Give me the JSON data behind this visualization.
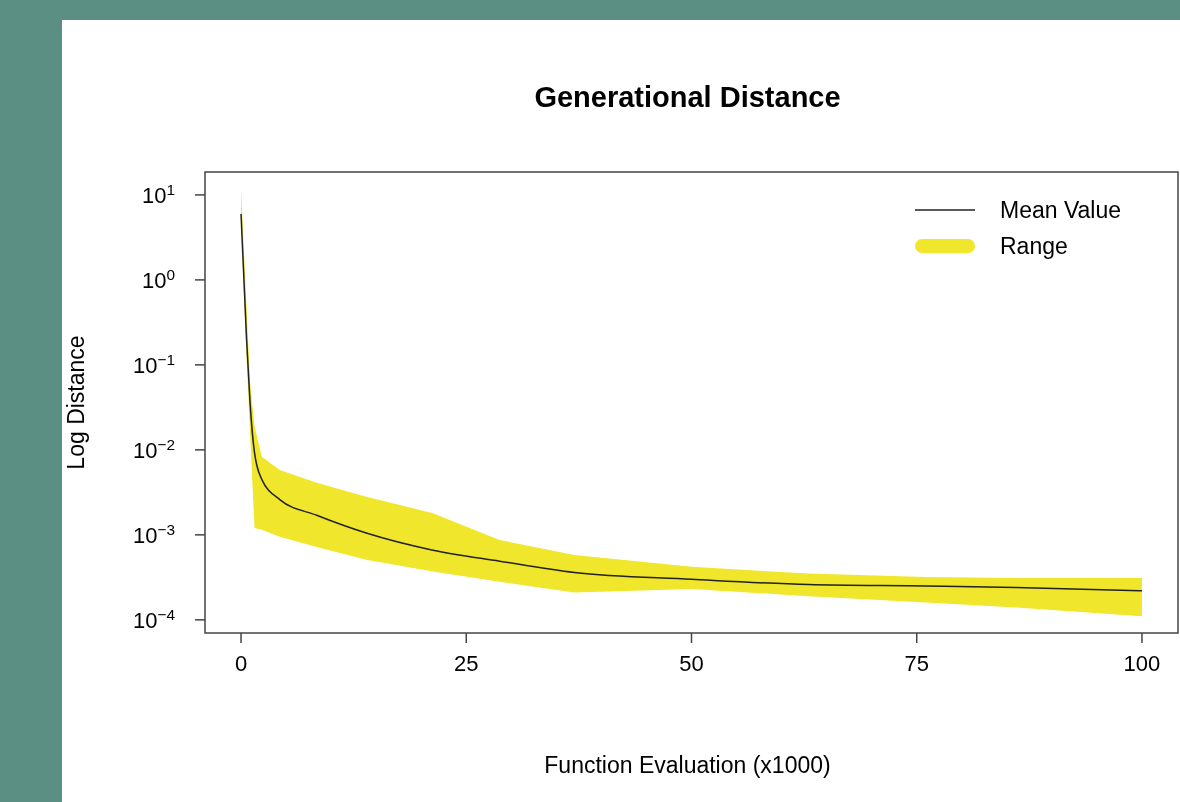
{
  "chart_data": {
    "type": "line",
    "title": "Generational Distance",
    "xlabel": "Function Evaluation (x1000)",
    "ylabel": "Log Distance",
    "log": "y",
    "x": [
      0,
      0.6,
      1.0,
      1.5,
      2.3,
      4.3,
      8.4,
      13.9,
      21.3,
      28.7,
      37,
      50,
      63,
      76,
      86,
      100
    ],
    "xlim": [
      -4,
      104
    ],
    "xticks": [
      0,
      25,
      50,
      75,
      100
    ],
    "ylim": [
      7e-05,
      18.6
    ],
    "yticks": [
      {
        "value": 10,
        "label": "10$^{1}$"
      },
      {
        "value": 1,
        "label": "10$^{0}$"
      },
      {
        "value": 0.1,
        "label": "10$^{−1}$"
      },
      {
        "value": 0.01,
        "label": "10$^{−2}$"
      },
      {
        "value": 0.001,
        "label": "10$^{−3}$"
      },
      {
        "value": 0.0001,
        "label": "10$^{−4}$"
      }
    ],
    "series": [
      {
        "name": "Mean Value",
        "color": "#222222",
        "values": [
          5.97,
          0.215,
          0.036,
          0.0092,
          0.0045,
          0.0026,
          0.0017,
          0.00105,
          0.00066,
          0.00049,
          0.00036,
          0.0003,
          0.00026,
          0.00025,
          0.00024,
          0.00022
        ]
      },
      {
        "name": "Range",
        "color": "#f0e62c",
        "values": [
          null,
          null,
          null,
          null,
          null,
          null,
          null,
          null,
          null,
          null,
          null,
          null,
          null,
          null,
          null,
          null
        ],
        "lower": [
          5.0,
          0.13,
          0.016,
          0.0012,
          0.00115,
          0.00095,
          0.00072,
          0.00051,
          0.00037,
          0.00028,
          0.00021,
          0.00023,
          0.00019,
          0.00016,
          0.00014,
          0.00011
        ],
        "upper": [
          12,
          0.5,
          0.063,
          0.019,
          0.0083,
          0.0058,
          0.0041,
          0.0028,
          0.0018,
          0.00087,
          0.00058,
          0.00042,
          0.00035,
          0.00032,
          0.00031,
          0.00031
        ]
      }
    ],
    "grid": false,
    "marker": "none",
    "legend": "top right",
    "line_style": "solid"
  }
}
